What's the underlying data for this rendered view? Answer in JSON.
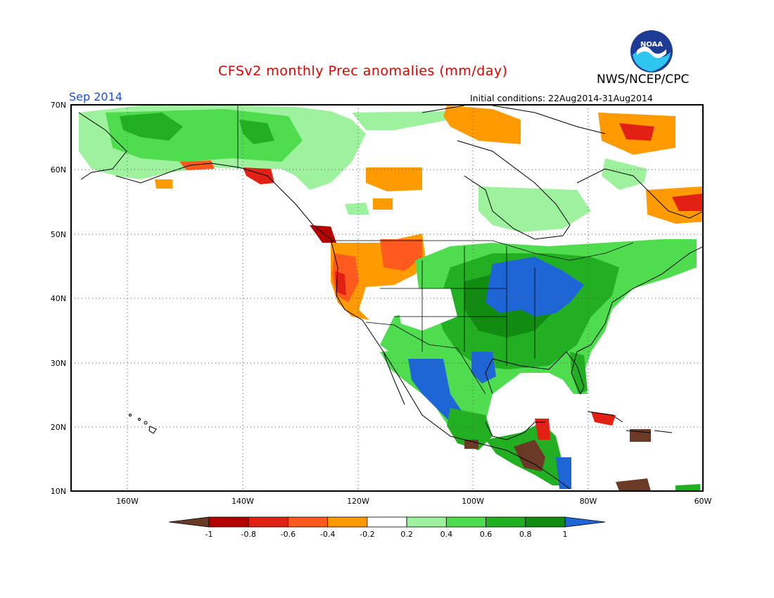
{
  "header": {
    "title": "CFSv2 monthly Prec anomalies (mm/day)",
    "agency": "NWS/NCEP/CPC",
    "logo_text": "NOAA",
    "valid_month": "Sep 2014",
    "initial_conditions": "Initial conditions: 22Aug2014-31Aug2014"
  },
  "map": {
    "lat_labels": [
      "70N",
      "60N",
      "50N",
      "40N",
      "30N",
      "20N",
      "10N"
    ],
    "lon_labels": [
      "160W",
      "140W",
      "120W",
      "100W",
      "80W",
      "60W"
    ],
    "grid": "dotted",
    "region": "North America"
  },
  "colorbar": {
    "labels": [
      "-1",
      "-0.8",
      "-0.6",
      "-0.4",
      "-0.2",
      "0.2",
      "0.4",
      "0.6",
      "0.8",
      "1"
    ],
    "colors": [
      "#6b3a26",
      "#b30000",
      "#e32014",
      "#ff5a1e",
      "#ff9a00",
      "#ffffff",
      "#9ef29e",
      "#4fdc4f",
      "#22b022",
      "#118c11",
      "#1e66d6"
    ]
  },
  "anomaly_regions": [
    {
      "name": "central-us-wet",
      "category": "> 1",
      "color": "#1e66d6"
    },
    {
      "name": "mexico-wet",
      "category": "> 1",
      "color": "#1e66d6"
    },
    {
      "name": "eastern-us-wet",
      "category": "0.6 to 0.8",
      "color": "#22b022"
    },
    {
      "name": "pacific-northwest-dry",
      "category": "-0.8 to -0.6",
      "color": "#e32014"
    },
    {
      "name": "great-basin-dry",
      "category": "-0.4 to -0.2",
      "color": "#ff9a00"
    },
    {
      "name": "alaska-wet",
      "category": "0.4 to 0.6",
      "color": "#4fdc4f"
    },
    {
      "name": "canada-arctic-dry",
      "category": "-0.4 to -0.2",
      "color": "#ff9a00"
    },
    {
      "name": "labrador-dry",
      "category": "-0.6 to -0.4",
      "color": "#ff5a1e"
    },
    {
      "name": "central-america-dry",
      "category": "< -1",
      "color": "#6b3a26"
    }
  ]
}
